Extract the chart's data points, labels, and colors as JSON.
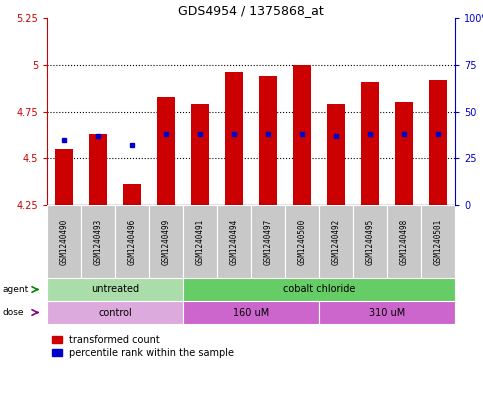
{
  "title": "GDS4954 / 1375868_at",
  "samples": [
    "GSM1240490",
    "GSM1240493",
    "GSM1240496",
    "GSM1240499",
    "GSM1240491",
    "GSM1240494",
    "GSM1240497",
    "GSM1240500",
    "GSM1240492",
    "GSM1240495",
    "GSM1240498",
    "GSM1240501"
  ],
  "bar_values": [
    4.55,
    4.63,
    4.36,
    4.83,
    4.79,
    4.96,
    4.94,
    5.0,
    4.79,
    4.91,
    4.8,
    4.92
  ],
  "blue_dot_values": [
    4.6,
    4.62,
    4.57,
    4.63,
    4.63,
    4.63,
    4.63,
    4.63,
    4.62,
    4.63,
    4.63,
    4.63
  ],
  "bar_base": 4.25,
  "ylim_min": 4.25,
  "ylim_max": 5.25,
  "yticks": [
    4.25,
    4.5,
    4.75,
    5.0,
    5.25
  ],
  "ytick_labels": [
    "4.25",
    "4.5",
    "4.75",
    "5",
    "5.25"
  ],
  "right_yticks": [
    0,
    25,
    50,
    75,
    100
  ],
  "right_ytick_labels": [
    "0",
    "25",
    "50",
    "75",
    "100%"
  ],
  "bar_color": "#cc0000",
  "blue_color": "#0000cc",
  "grid_lines": [
    4.5,
    4.75,
    5.0
  ],
  "agent_groups": [
    {
      "label": "untreated",
      "start": 0,
      "end": 4,
      "color": "#aaddaa"
    },
    {
      "label": "cobalt chloride",
      "start": 4,
      "end": 12,
      "color": "#66cc66"
    }
  ],
  "dose_groups": [
    {
      "label": "control",
      "start": 0,
      "end": 4,
      "color": "#ddaadd"
    },
    {
      "label": "160 uM",
      "start": 4,
      "end": 8,
      "color": "#cc66cc"
    },
    {
      "label": "310 uM",
      "start": 8,
      "end": 12,
      "color": "#cc66cc"
    }
  ],
  "legend_red_label": "transformed count",
  "legend_blue_label": "percentile rank within the sample",
  "bar_width": 0.55,
  "tick_color_left": "#cc0000",
  "tick_color_right": "#0000cc",
  "bg_color": "#ffffff",
  "label_gray": "#c8c8c8"
}
